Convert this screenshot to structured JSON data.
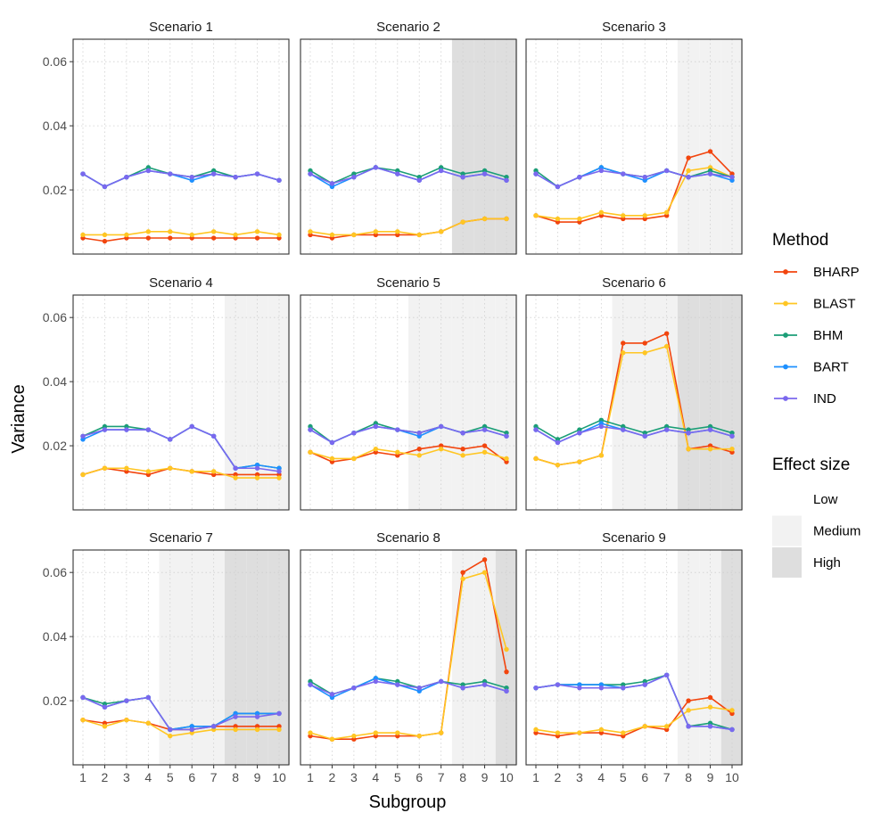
{
  "chart_data": {
    "type": "line",
    "xlabel": "Subgroup",
    "ylabel": "Variance",
    "x": [
      1,
      2,
      3,
      4,
      5,
      6,
      7,
      8,
      9,
      10
    ],
    "x_ticks": [
      "1",
      "2",
      "3",
      "4",
      "5",
      "6",
      "7",
      "8",
      "9",
      "10"
    ],
    "ylim": [
      0,
      0.067
    ],
    "y_ticks": [
      0.02,
      0.04,
      0.06
    ],
    "y_tick_labels": [
      "0.02",
      "0.04",
      "0.06"
    ],
    "grid": true,
    "legend": {
      "method_title": "Method",
      "methods": [
        {
          "name": "BHARP",
          "color": "#F2450E"
        },
        {
          "name": "BLAST",
          "color": "#FFC623"
        },
        {
          "name": "BHM",
          "color": "#1B9E77"
        },
        {
          "name": "BART",
          "color": "#1E90FF"
        },
        {
          "name": "IND",
          "color": "#7B68EE"
        }
      ],
      "effect_title": "Effect size",
      "effects": [
        {
          "name": "Low",
          "color": "#FFFFFF"
        },
        {
          "name": "Medium",
          "color": "#F2F2F2"
        },
        {
          "name": "High",
          "color": "#DEDEDE"
        }
      ]
    },
    "panels": [
      {
        "title": "Scenario 1",
        "effect": [
          "Low",
          "Low",
          "Low",
          "Low",
          "Low",
          "Low",
          "Low",
          "Low",
          "Low",
          "Low"
        ],
        "series": [
          {
            "name": "BHARP",
            "values": [
              0.005,
              0.004,
              0.005,
              0.005,
              0.005,
              0.005,
              0.005,
              0.005,
              0.005,
              0.005
            ]
          },
          {
            "name": "BLAST",
            "values": [
              0.006,
              0.006,
              0.006,
              0.007,
              0.007,
              0.006,
              0.007,
              0.006,
              0.007,
              0.006
            ]
          },
          {
            "name": "BHM",
            "values": [
              0.025,
              0.021,
              0.024,
              0.027,
              0.025,
              0.024,
              0.026,
              0.024,
              0.025,
              0.023
            ]
          },
          {
            "name": "BART",
            "values": [
              0.025,
              0.021,
              0.024,
              0.026,
              0.025,
              0.023,
              0.025,
              0.024,
              0.025,
              0.023
            ]
          },
          {
            "name": "IND",
            "values": [
              0.025,
              0.021,
              0.024,
              0.026,
              0.025,
              0.024,
              0.025,
              0.024,
              0.025,
              0.023
            ]
          }
        ]
      },
      {
        "title": "Scenario 2",
        "effect": [
          "Low",
          "Low",
          "Low",
          "Low",
          "Low",
          "Low",
          "Low",
          "High",
          "High",
          "High"
        ],
        "series": [
          {
            "name": "BHARP",
            "values": [
              0.006,
              0.005,
              0.006,
              0.006,
              0.006,
              0.006,
              0.007,
              0.01,
              0.011,
              0.011
            ]
          },
          {
            "name": "BLAST",
            "values": [
              0.007,
              0.006,
              0.006,
              0.007,
              0.007,
              0.006,
              0.007,
              0.01,
              0.011,
              0.011
            ]
          },
          {
            "name": "BHM",
            "values": [
              0.026,
              0.022,
              0.025,
              0.027,
              0.026,
              0.024,
              0.027,
              0.025,
              0.026,
              0.024
            ]
          },
          {
            "name": "BART",
            "values": [
              0.025,
              0.021,
              0.024,
              0.027,
              0.025,
              0.023,
              0.026,
              0.024,
              0.025,
              0.023
            ]
          },
          {
            "name": "IND",
            "values": [
              0.025,
              0.022,
              0.024,
              0.027,
              0.025,
              0.023,
              0.026,
              0.024,
              0.025,
              0.023
            ]
          }
        ]
      },
      {
        "title": "Scenario 3",
        "effect": [
          "Low",
          "Low",
          "Low",
          "Low",
          "Low",
          "Low",
          "Low",
          "Medium",
          "Medium",
          "Medium"
        ],
        "series": [
          {
            "name": "BHARP",
            "values": [
              0.012,
              0.01,
              0.01,
              0.012,
              0.011,
              0.011,
              0.012,
              0.03,
              0.032,
              0.025
            ]
          },
          {
            "name": "BLAST",
            "values": [
              0.012,
              0.011,
              0.011,
              0.013,
              0.012,
              0.012,
              0.013,
              0.026,
              0.027,
              0.024
            ]
          },
          {
            "name": "BHM",
            "values": [
              0.026,
              0.021,
              0.024,
              0.027,
              0.025,
              0.024,
              0.026,
              0.024,
              0.026,
              0.024
            ]
          },
          {
            "name": "BART",
            "values": [
              0.025,
              0.021,
              0.024,
              0.027,
              0.025,
              0.023,
              0.026,
              0.024,
              0.025,
              0.023
            ]
          },
          {
            "name": "IND",
            "values": [
              0.025,
              0.021,
              0.024,
              0.026,
              0.025,
              0.024,
              0.026,
              0.024,
              0.025,
              0.024
            ]
          }
        ]
      },
      {
        "title": "Scenario 4",
        "effect": [
          "Low",
          "Low",
          "Low",
          "Low",
          "Low",
          "Low",
          "Low",
          "Medium",
          "Medium",
          "Medium"
        ],
        "series": [
          {
            "name": "BHARP",
            "values": [
              0.011,
              0.013,
              0.012,
              0.011,
              0.013,
              0.012,
              0.011,
              0.011,
              0.011,
              0.011
            ]
          },
          {
            "name": "BLAST",
            "values": [
              0.011,
              0.013,
              0.013,
              0.012,
              0.013,
              0.012,
              0.012,
              0.01,
              0.01,
              0.01
            ]
          },
          {
            "name": "BHM",
            "values": [
              0.023,
              0.026,
              0.026,
              0.025,
              0.022,
              0.026,
              0.023,
              0.013,
              0.014,
              0.013
            ]
          },
          {
            "name": "BART",
            "values": [
              0.022,
              0.025,
              0.025,
              0.025,
              0.022,
              0.026,
              0.023,
              0.013,
              0.014,
              0.013
            ]
          },
          {
            "name": "IND",
            "values": [
              0.023,
              0.025,
              0.025,
              0.025,
              0.022,
              0.026,
              0.023,
              0.013,
              0.013,
              0.012
            ]
          }
        ]
      },
      {
        "title": "Scenario 5",
        "effect": [
          "Low",
          "Low",
          "Low",
          "Low",
          "Low",
          "Medium",
          "Medium",
          "Medium",
          "Medium",
          "Medium"
        ],
        "series": [
          {
            "name": "BHARP",
            "values": [
              0.018,
              0.015,
              0.016,
              0.018,
              0.017,
              0.019,
              0.02,
              0.019,
              0.02,
              0.015
            ]
          },
          {
            "name": "BLAST",
            "values": [
              0.018,
              0.016,
              0.016,
              0.019,
              0.018,
              0.017,
              0.019,
              0.017,
              0.018,
              0.016
            ]
          },
          {
            "name": "BHM",
            "values": [
              0.026,
              0.021,
              0.024,
              0.027,
              0.025,
              0.024,
              0.026,
              0.024,
              0.026,
              0.024
            ]
          },
          {
            "name": "BART",
            "values": [
              0.025,
              0.021,
              0.024,
              0.026,
              0.025,
              0.023,
              0.026,
              0.024,
              0.025,
              0.023
            ]
          },
          {
            "name": "IND",
            "values": [
              0.025,
              0.021,
              0.024,
              0.026,
              0.025,
              0.024,
              0.026,
              0.024,
              0.025,
              0.023
            ]
          }
        ]
      },
      {
        "title": "Scenario 6",
        "effect": [
          "Low",
          "Low",
          "Low",
          "Low",
          "Medium",
          "Medium",
          "Medium",
          "High",
          "High",
          "High"
        ],
        "series": [
          {
            "name": "BHARP",
            "values": [
              0.016,
              0.014,
              0.015,
              0.017,
              0.052,
              0.052,
              0.055,
              0.019,
              0.02,
              0.018
            ]
          },
          {
            "name": "BLAST",
            "values": [
              0.016,
              0.014,
              0.015,
              0.017,
              0.049,
              0.049,
              0.051,
              0.019,
              0.019,
              0.019
            ]
          },
          {
            "name": "BHM",
            "values": [
              0.026,
              0.022,
              0.025,
              0.028,
              0.026,
              0.024,
              0.026,
              0.025,
              0.026,
              0.024
            ]
          },
          {
            "name": "BART",
            "values": [
              0.025,
              0.021,
              0.024,
              0.027,
              0.025,
              0.023,
              0.025,
              0.024,
              0.025,
              0.023
            ]
          },
          {
            "name": "IND",
            "values": [
              0.025,
              0.021,
              0.024,
              0.026,
              0.025,
              0.023,
              0.025,
              0.024,
              0.025,
              0.023
            ]
          }
        ]
      },
      {
        "title": "Scenario 7",
        "effect": [
          "Low",
          "Low",
          "Low",
          "Low",
          "Medium",
          "Medium",
          "Medium",
          "High",
          "High",
          "High"
        ],
        "series": [
          {
            "name": "BHARP",
            "values": [
              0.014,
              0.013,
              0.014,
              0.013,
              0.011,
              0.011,
              0.012,
              0.012,
              0.012,
              0.012
            ]
          },
          {
            "name": "BLAST",
            "values": [
              0.014,
              0.012,
              0.014,
              0.013,
              0.009,
              0.01,
              0.011,
              0.011,
              0.011,
              0.011
            ]
          },
          {
            "name": "BHM",
            "values": [
              0.021,
              0.019,
              0.02,
              0.021,
              0.011,
              0.012,
              0.012,
              0.016,
              0.016,
              0.016
            ]
          },
          {
            "name": "BART",
            "values": [
              0.021,
              0.018,
              0.02,
              0.021,
              0.011,
              0.012,
              0.012,
              0.016,
              0.016,
              0.016
            ]
          },
          {
            "name": "IND",
            "values": [
              0.021,
              0.018,
              0.02,
              0.021,
              0.011,
              0.011,
              0.012,
              0.015,
              0.015,
              0.016
            ]
          }
        ]
      },
      {
        "title": "Scenario 8",
        "effect": [
          "Low",
          "Low",
          "Low",
          "Low",
          "Low",
          "Low",
          "Low",
          "Medium",
          "Medium",
          "High"
        ],
        "series": [
          {
            "name": "BHARP",
            "values": [
              0.009,
              0.008,
              0.008,
              0.009,
              0.009,
              0.009,
              0.01,
              0.06,
              0.064,
              0.029
            ]
          },
          {
            "name": "BLAST",
            "values": [
              0.01,
              0.008,
              0.009,
              0.01,
              0.01,
              0.009,
              0.01,
              0.058,
              0.06,
              0.036
            ]
          },
          {
            "name": "BHM",
            "values": [
              0.026,
              0.022,
              0.024,
              0.027,
              0.026,
              0.024,
              0.026,
              0.025,
              0.026,
              0.024
            ]
          },
          {
            "name": "BART",
            "values": [
              0.025,
              0.021,
              0.024,
              0.027,
              0.025,
              0.023,
              0.026,
              0.024,
              0.025,
              0.023
            ]
          },
          {
            "name": "IND",
            "values": [
              0.025,
              0.022,
              0.024,
              0.026,
              0.025,
              0.024,
              0.026,
              0.024,
              0.025,
              0.023
            ]
          }
        ]
      },
      {
        "title": "Scenario 9",
        "effect": [
          "Low",
          "Low",
          "Low",
          "Low",
          "Low",
          "Low",
          "Low",
          "Medium",
          "Medium",
          "High"
        ],
        "series": [
          {
            "name": "BHARP",
            "values": [
              0.01,
              0.009,
              0.01,
              0.01,
              0.009,
              0.012,
              0.011,
              0.02,
              0.021,
              0.016
            ]
          },
          {
            "name": "BLAST",
            "values": [
              0.011,
              0.01,
              0.01,
              0.011,
              0.01,
              0.012,
              0.012,
              0.017,
              0.018,
              0.017
            ]
          },
          {
            "name": "BHM",
            "values": [
              0.024,
              0.025,
              0.025,
              0.025,
              0.025,
              0.026,
              0.028,
              0.012,
              0.013,
              0.011
            ]
          },
          {
            "name": "BART",
            "values": [
              0.024,
              0.025,
              0.025,
              0.025,
              0.024,
              0.025,
              0.028,
              0.012,
              0.012,
              0.011
            ]
          },
          {
            "name": "IND",
            "values": [
              0.024,
              0.025,
              0.024,
              0.024,
              0.024,
              0.025,
              0.028,
              0.012,
              0.012,
              0.011
            ]
          }
        ]
      }
    ]
  }
}
